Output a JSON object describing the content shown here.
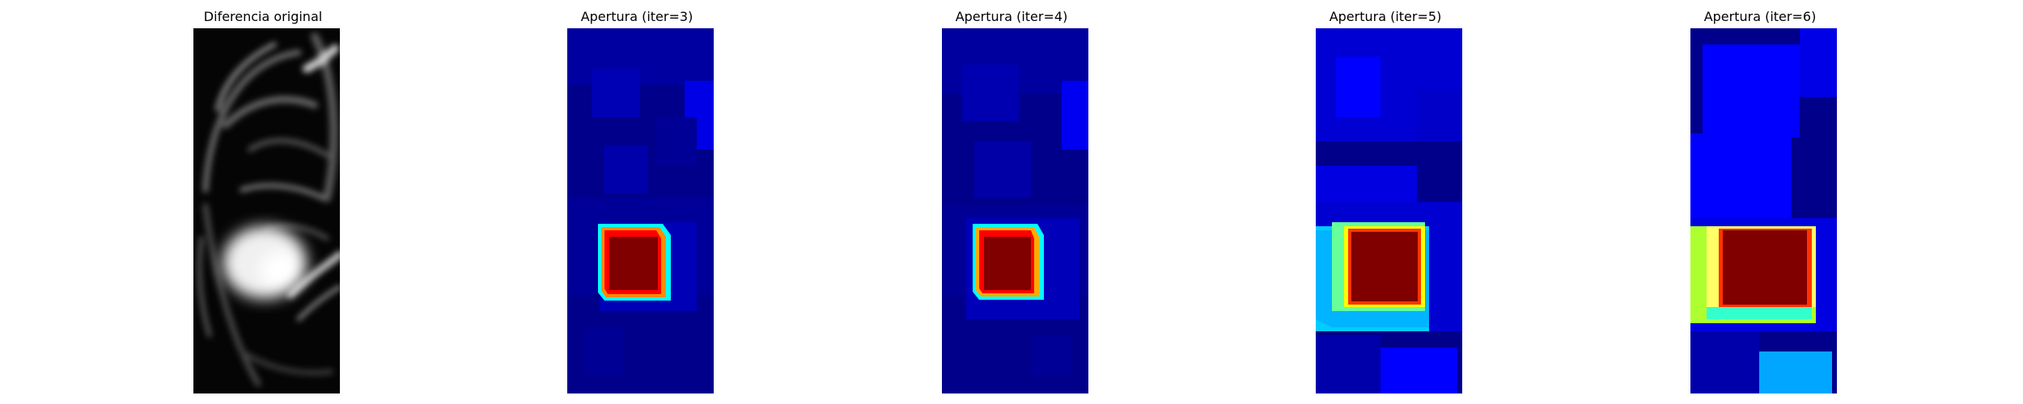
{
  "figure": {
    "panels": [
      {
        "title": "Diferencia original",
        "kind": "grayscale"
      },
      {
        "title": "Apertura (iter=3)",
        "kind": "jet"
      },
      {
        "title": "Apertura (iter=4)",
        "kind": "jet"
      },
      {
        "title": "Apertura (iter=5)",
        "kind": "jet"
      },
      {
        "title": "Apertura (iter=6)",
        "kind": "jet"
      }
    ],
    "colors": {
      "background": "#ffffff",
      "dark_navy": "#00008b",
      "jet_blue": "#0000ff",
      "jet_cyan": "#00ffff",
      "jet_sky": "#00a6ff",
      "jet_lime": "#adff2f",
      "jet_yellow": "#ffff00",
      "jet_red": "#ff0000",
      "jet_maroon": "#800000"
    }
  }
}
